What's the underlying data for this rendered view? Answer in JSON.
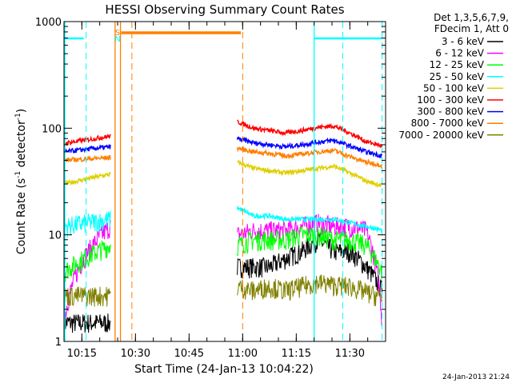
{
  "chart_data": {
    "type": "line",
    "title": "HESSI Observing Summary Count Rates",
    "xlabel": "Start Time (24-Jan-13 10:04:22)",
    "ylabel_main": "Count Rate (s",
    "ylabel_sup1": "-1",
    "ylabel_mid": " detector",
    "ylabel_sup2": "-1",
    "ylabel_end": ")",
    "yscale": "log",
    "ylim": [
      1,
      1000
    ],
    "xlim_minutes": [
      10.0,
      100.0
    ],
    "x_ticks": [
      {
        "label": "10:15",
        "minute": 15
      },
      {
        "label": "10:30",
        "minute": 30
      },
      {
        "label": "10:45",
        "minute": 45
      },
      {
        "label": "11:00",
        "minute": 60
      },
      {
        "label": "11:15",
        "minute": 75
      },
      {
        "label": "11:30",
        "minute": 90
      }
    ],
    "y_ticks": [
      {
        "label": "1",
        "value": 1
      },
      {
        "label": "10",
        "value": 10
      },
      {
        "label": "100",
        "value": 100
      },
      {
        "label": "1000",
        "value": 1000
      }
    ],
    "legend_header": [
      "Det 1,3,5,6,7,9,",
      "FDecim 1, Att 0"
    ],
    "series": [
      {
        "name": "3 - 6 keV",
        "color": "#000000",
        "pre": [
          1.5,
          1.5
        ],
        "post": [
          5,
          5,
          5,
          6,
          7,
          9,
          7,
          7,
          5,
          3
        ]
      },
      {
        "name": "6 - 12 keV",
        "color": "#ff00ff",
        "pre": [
          1.5,
          12
        ],
        "post": [
          10,
          11,
          11,
          11,
          12,
          13,
          12,
          12,
          11,
          1.5
        ]
      },
      {
        "name": "12 - 25 keV",
        "color": "#00ff00",
        "pre": [
          4.5,
          8
        ],
        "post": [
          8,
          9,
          9,
          9,
          10,
          10,
          9,
          9,
          8,
          4.5
        ]
      },
      {
        "name": "25 - 50 keV",
        "color": "#00ffff",
        "pre": [
          12,
          14
        ],
        "post": [
          18,
          15,
          15,
          14,
          14,
          14,
          14,
          13,
          12,
          11
        ]
      },
      {
        "name": "50 - 100 keV",
        "color": "#ddd000",
        "pre": [
          30,
          37
        ],
        "post": [
          48,
          42,
          40,
          38,
          40,
          42,
          44,
          38,
          32,
          29
        ]
      },
      {
        "name": "100 - 300 keV",
        "color": "#ff0000",
        "pre": [
          72,
          84
        ],
        "post": [
          115,
          100,
          95,
          90,
          95,
          102,
          105,
          90,
          75,
          68
        ]
      },
      {
        "name": "300 - 800 keV",
        "color": "#0000ff",
        "pre": [
          60,
          67
        ],
        "post": [
          80,
          73,
          70,
          67,
          70,
          74,
          77,
          68,
          60,
          55
        ]
      },
      {
        "name": "800 - 7000 keV",
        "color": "#ff7f00",
        "pre": [
          50,
          53
        ],
        "post": [
          65,
          60,
          58,
          55,
          57,
          60,
          62,
          54,
          48,
          45
        ]
      },
      {
        "name": "7000 - 20000 keV",
        "color": "#808000",
        "pre": [
          2.7,
          2.7
        ],
        "post": [
          3.3,
          3.0,
          3.3,
          3.0,
          3.3,
          3.6,
          3.4,
          3.3,
          2.9,
          2.6
        ]
      }
    ],
    "pre_interval_minutes": [
      10.0,
      23.0
    ],
    "post_interval_minutes": [
      58.5,
      99.0
    ],
    "saa_markers": [
      {
        "label": "S",
        "minute": 25.0
      },
      {
        "label": "N",
        "minute": 25.0
      }
    ],
    "timestamp": "24-Jan-2013 21:24"
  }
}
